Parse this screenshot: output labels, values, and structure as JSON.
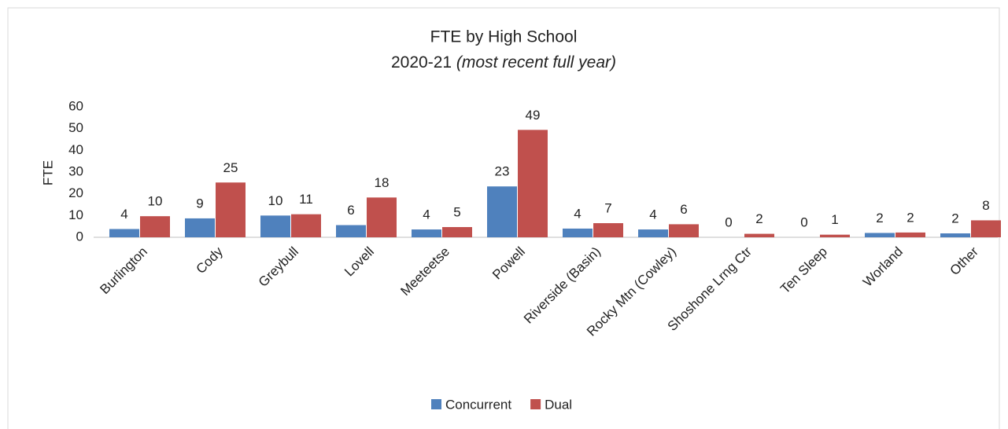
{
  "chart_data": {
    "type": "bar",
    "title": "FTE by High School",
    "subtitle": [
      "2020-21",
      "(most recent full year)"
    ],
    "y_label": "FTE",
    "categories": [
      "Burlington",
      "Cody",
      "Greybull",
      "Lovell",
      "Meeteetse",
      "Powell",
      "Riverside (Basin)",
      "Rocky Mtn (Cowley)",
      "Shoshone Lrng Ctr",
      "Ten Sleep",
      "Worland",
      "Other"
    ],
    "series": [
      {
        "name": "Concurrent",
        "color": "#4f81bd",
        "values": [
          3.8,
          8.7,
          10.0,
          5.6,
          3.6,
          23.4,
          4.0,
          3.6,
          0,
          0,
          2.0,
          1.8
        ],
        "value_labels": [
          "4",
          "9",
          "10",
          "6",
          "4",
          "23",
          "4",
          "4",
          "0",
          "0",
          "2",
          "2"
        ]
      },
      {
        "name": "Dual",
        "color": "#c0504d",
        "values": [
          9.7,
          25.2,
          10.6,
          18.3,
          4.7,
          49.4,
          6.5,
          6.0,
          1.6,
          1.2,
          2.2,
          7.8
        ],
        "value_labels": [
          "10",
          "25",
          "11",
          "18",
          "5",
          "49",
          "7",
          "6",
          "2",
          "1",
          "2",
          "8"
        ]
      }
    ],
    "ylim": [
      0,
      60
    ],
    "yticks": [
      0,
      10,
      20,
      30,
      40,
      50,
      60
    ],
    "grid": false,
    "legend": "bottom"
  }
}
